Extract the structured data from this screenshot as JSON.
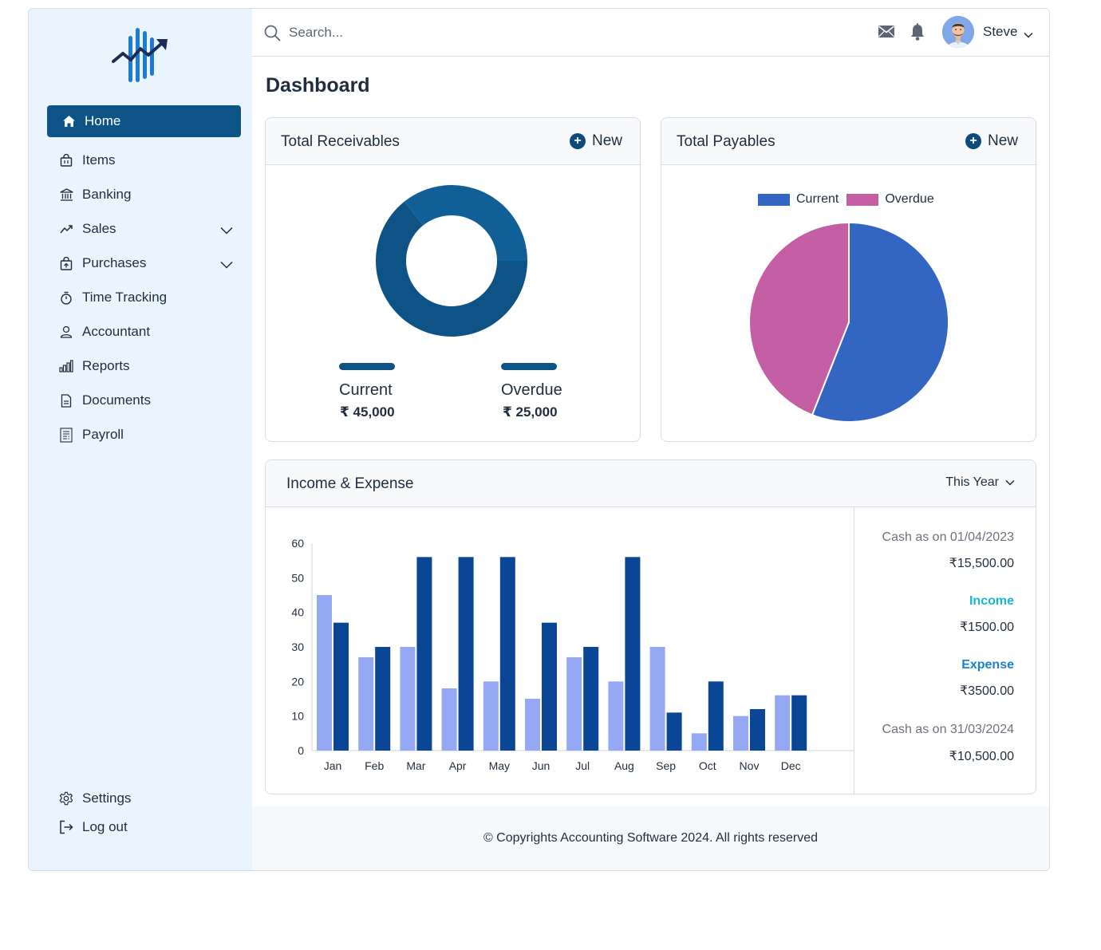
{
  "app": {
    "colors": {
      "primary": "#0e5386",
      "sidebar_bg": "#eaf4fe"
    }
  },
  "sidebar": {
    "logo": "chart-logo",
    "items": [
      {
        "label": "Home",
        "icon": "home-icon",
        "active": true
      },
      {
        "label": "Items",
        "icon": "shopping-bag-icon"
      },
      {
        "label": "Banking",
        "icon": "bank-icon"
      },
      {
        "label": "Sales",
        "icon": "trend-icon",
        "expandable": true
      },
      {
        "label": "Purchases",
        "icon": "purchase-bag-icon",
        "expandable": true
      },
      {
        "label": "Time Tracking",
        "icon": "stopwatch-icon"
      },
      {
        "label": "Accountant",
        "icon": "user-icon"
      },
      {
        "label": "Reports",
        "icon": "bar-chart-icon"
      },
      {
        "label": "Documents",
        "icon": "document-icon"
      },
      {
        "label": "Payroll",
        "icon": "payroll-icon"
      }
    ],
    "bottom": [
      {
        "label": "Settings",
        "icon": "gear-icon"
      },
      {
        "label": "Log out",
        "icon": "logout-icon"
      }
    ]
  },
  "header": {
    "search_placeholder": "Search...",
    "user_name": "Steve"
  },
  "page": {
    "title": "Dashboard"
  },
  "receivables": {
    "title": "Total Receivables",
    "new_label": "New",
    "current_label": "Current",
    "current_amount": "₹ 45,000",
    "overdue_label": "Overdue",
    "overdue_amount": "₹ 25,000"
  },
  "payables": {
    "title": "Total Payables",
    "new_label": "New",
    "legend": [
      "Current",
      "Overdue"
    ]
  },
  "income_expense": {
    "title": "Income & Expense",
    "period": "This Year",
    "summary": {
      "cash_start_label": "Cash as on 01/04/2023",
      "cash_start_value": "₹15,500.00",
      "income_label": "Income",
      "income_value": "₹1500.00",
      "expense_label": "Expense",
      "expense_value": "₹3500.00",
      "cash_end_label": "Cash as on 31/03/2024",
      "cash_end_value": "₹10,500.00"
    }
  },
  "footer": {
    "text": "© Copyrights Accounting Software 2024. All rights reserved"
  },
  "chart_data": [
    {
      "type": "pie",
      "subtype": "donut",
      "labels": [
        "Current",
        "Overdue"
      ],
      "values": [
        45000,
        25000
      ],
      "colors": [
        "#0e5386",
        "#105f97"
      ]
    },
    {
      "type": "pie",
      "labels": [
        "Current",
        "Overdue"
      ],
      "values": [
        56,
        44
      ],
      "colors": [
        "#3366c2",
        "#c55fa5"
      ],
      "legend": "top"
    },
    {
      "type": "bar",
      "categories": [
        "Jan",
        "Feb",
        "Mar",
        "Apr",
        "May",
        "Jun",
        "Jul",
        "Aug",
        "Sep",
        "Oct",
        "Nov",
        "Dec"
      ],
      "series": [
        {
          "values": [
            45,
            27,
            30,
            18,
            20,
            15,
            27,
            20,
            30,
            5,
            10,
            16
          ],
          "color": "#94a8f4"
        },
        {
          "values": [
            37,
            30,
            56,
            56,
            56,
            37,
            30,
            56,
            11,
            20,
            12,
            16
          ],
          "color": "#0a4596"
        }
      ],
      "yticks": [
        0,
        10,
        20,
        30,
        40,
        50,
        60
      ],
      "ylim": [
        0,
        60
      ],
      "grid": false
    }
  ]
}
